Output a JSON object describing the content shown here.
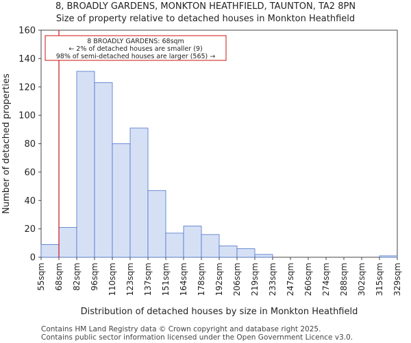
{
  "header": {
    "title": "8, BROADLY GARDENS, MONKTON HEATHFIELD, TAUNTON, TA2 8PN",
    "subtitle": "Size of property relative to detached houses in Monkton Heathfield"
  },
  "footer": {
    "line1": "Contains HM Land Registry data © Crown copyright and database right 2025.",
    "line2": "Contains public sector information licensed under the Open Government Licence v3.0."
  },
  "colors": {
    "bar_fill": "#d6e0f5",
    "bar_stroke": "#4a72c8",
    "marker": "#cc1111",
    "annotation_border": "#cc1111"
  },
  "chart_data": {
    "type": "bar",
    "title": "8, BROADLY GARDENS, MONKTON HEATHFIELD, TAUNTON, TA2 8PN",
    "subtitle": "Size of property relative to detached houses in Monkton Heathfield",
    "xlabel": "Distribution of detached houses by size in Monkton Heathfield",
    "ylabel": "Number of detached properties",
    "bin_edges": [
      "55sqm",
      "68sqm",
      "82sqm",
      "96sqm",
      "110sqm",
      "123sqm",
      "137sqm",
      "151sqm",
      "164sqm",
      "178sqm",
      "192sqm",
      "206sqm",
      "219sqm",
      "233sqm",
      "247sqm",
      "260sqm",
      "274sqm",
      "288sqm",
      "302sqm",
      "315sqm",
      "329sqm"
    ],
    "values": [
      9,
      21,
      131,
      123,
      80,
      91,
      47,
      17,
      22,
      16,
      8,
      6,
      2,
      0,
      0,
      0,
      0,
      0,
      0,
      1
    ],
    "ylim": [
      0,
      160
    ],
    "yticks": [
      0,
      20,
      40,
      60,
      80,
      100,
      120,
      140,
      160
    ],
    "marker_bin_position": 1,
    "annotation": {
      "line1": "8 BROADLY GARDENS: 68sqm",
      "line2": "← 2% of detached houses are smaller (9)",
      "line3": "98% of semi-detached houses are larger (565) →"
    }
  }
}
